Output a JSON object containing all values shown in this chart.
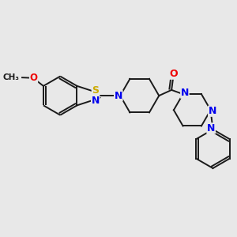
{
  "background_color": "#e8e8e8",
  "bond_color": "#1a1a1a",
  "atom_colors": {
    "S": "#ccaa00",
    "N": "#0000ee",
    "O": "#ee0000",
    "C": "#1a1a1a"
  },
  "figsize": [
    3.0,
    3.0
  ],
  "dpi": 100,
  "lw": 1.4,
  "font_size": 8.5
}
